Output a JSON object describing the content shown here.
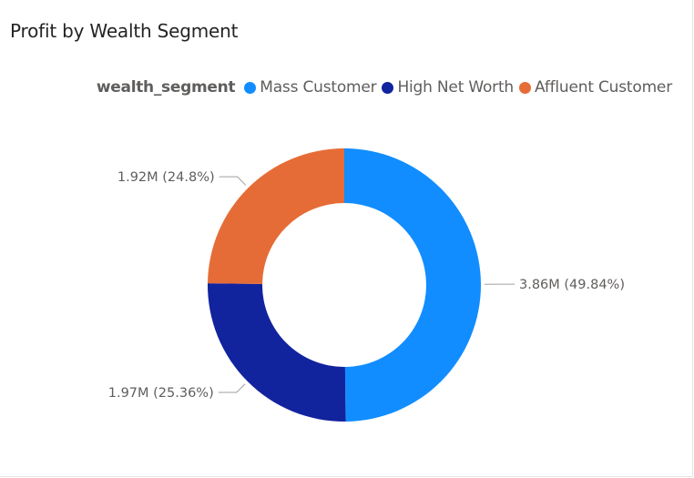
{
  "title": "Profit by Wealth Segment",
  "legend": {
    "title": "wealth_segment",
    "items": [
      {
        "label": "Mass Customer",
        "color": "#118DFF"
      },
      {
        "label": "High Net Worth",
        "color": "#12239E"
      },
      {
        "label": "Affluent Customer",
        "color": "#E66C37"
      }
    ]
  },
  "chart_data": {
    "type": "pie",
    "donut": true,
    "title": "Profit by Wealth Segment",
    "legend_title": "wealth_segment",
    "legend_position": "top-right",
    "slices": [
      {
        "label": "Mass Customer",
        "value": 3.86,
        "unit": "M",
        "percent": 49.84,
        "color": "#118DFF",
        "data_label": "3.86M (49.84%)"
      },
      {
        "label": "High Net Worth",
        "value": 1.97,
        "unit": "M",
        "percent": 25.36,
        "color": "#12239E",
        "data_label": "1.97M (25.36%)"
      },
      {
        "label": "Affluent Customer",
        "value": 1.92,
        "unit": "M",
        "percent": 24.8,
        "color": "#E66C37",
        "data_label": "1.92M (24.8%)"
      }
    ]
  }
}
